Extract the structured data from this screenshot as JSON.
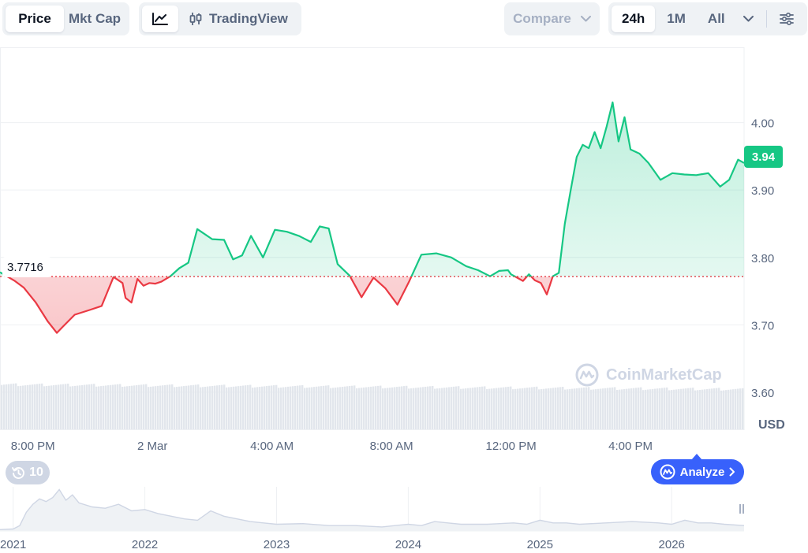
{
  "toolbar": {
    "type_options": [
      "Price",
      "Mkt Cap"
    ],
    "tradingview_label": "TradingView",
    "compare_label": "Compare",
    "range_options": [
      "24h",
      "1M",
      "All"
    ]
  },
  "current_price_badge": "3.94",
  "reference_price_badge": "3.7716",
  "history_count": "10",
  "analyze_label": "Analyze",
  "watermark_text": "CoinMarketCap",
  "colors": {
    "up": "#16c784",
    "down": "#ea3943",
    "accent": "#3861fb"
  },
  "chart_data": [
    {
      "type": "line",
      "title": "",
      "ylabel": "USD",
      "ylim": [
        3.545,
        4.1
      ],
      "y_ticks": [
        "4.00",
        "3.90",
        "3.80",
        "3.70",
        "3.60"
      ],
      "x_ticks": [
        "8:00 PM",
        "2 Mar",
        "4:00 AM",
        "8:00 AM",
        "12:00 PM",
        "4:00 PM"
      ],
      "x_tick_hours": [
        0,
        4,
        8,
        12,
        16,
        20
      ],
      "x_range_hours": [
        -1.1,
        23.8
      ],
      "reference_line": 3.7716,
      "reference_line_style": "dotted red",
      "fill": "area-above-green-below-red",
      "grid": true,
      "series": [
        {
          "values_x_hours": [
            -1.1,
            -0.6,
            -0.3,
            0.1,
            0.5,
            0.8,
            1.0,
            1.4,
            1.9,
            2.3,
            2.7,
            3.0,
            3.1,
            3.3,
            3.5,
            3.7,
            3.9,
            4.1,
            4.3,
            4.6,
            4.9,
            5.2,
            5.5,
            6.0,
            6.4,
            6.7,
            7.0,
            7.3,
            7.7,
            8.1,
            8.5,
            8.9,
            9.3,
            9.6,
            9.9,
            10.2,
            10.6,
            11.0,
            11.4,
            11.8,
            12.2,
            12.6,
            13.0,
            13.5,
            14.0,
            14.5,
            14.9,
            15.3,
            15.6,
            15.9,
            16.0,
            16.2,
            16.4,
            16.6,
            16.8,
            17.0,
            17.2,
            17.4,
            17.6,
            17.8,
            18.0,
            18.2,
            18.4,
            18.6,
            18.8,
            19.0,
            19.2,
            19.4,
            19.6,
            19.8,
            20.0,
            20.3,
            20.6,
            21.0,
            21.4,
            21.8,
            22.2,
            22.6,
            23.0,
            23.3,
            23.6,
            23.8
          ],
          "values_y": [
            3.778,
            3.765,
            3.755,
            3.733,
            3.705,
            3.688,
            3.697,
            3.715,
            3.722,
            3.728,
            3.771,
            3.762,
            3.74,
            3.733,
            3.768,
            3.758,
            3.762,
            3.761,
            3.764,
            3.772,
            3.784,
            3.792,
            3.842,
            3.827,
            3.826,
            3.797,
            3.803,
            3.832,
            3.8,
            3.841,
            3.838,
            3.832,
            3.823,
            3.846,
            3.843,
            3.79,
            3.773,
            3.741,
            3.77,
            3.754,
            3.73,
            3.765,
            3.804,
            3.806,
            3.8,
            3.787,
            3.781,
            3.772,
            3.78,
            3.781,
            3.775,
            3.77,
            3.765,
            3.775,
            3.766,
            3.762,
            3.745,
            3.772,
            3.777,
            3.85,
            3.9,
            3.949,
            3.967,
            3.962,
            3.986,
            3.962,
            3.994,
            4.03,
            3.972,
            4.008,
            3.96,
            3.954,
            3.94,
            3.915,
            3.925,
            3.923,
            3.922,
            3.925,
            3.905,
            3.915,
            3.945,
            3.94
          ]
        }
      ]
    },
    {
      "type": "area",
      "title": "",
      "x_ticks": [
        "2021",
        "2022",
        "2023",
        "2024",
        "2025",
        "2026"
      ],
      "x_range": [
        2020.9,
        2026.55
      ],
      "ylim": [
        0.9,
        4.2
      ],
      "series": [
        {
          "x": [
            2020.9,
            2021.0,
            2021.05,
            2021.1,
            2021.15,
            2021.2,
            2021.25,
            2021.3,
            2021.35,
            2021.4,
            2021.45,
            2021.5,
            2021.6,
            2021.7,
            2021.8,
            2021.9,
            2022.0,
            2022.1,
            2022.2,
            2022.3,
            2022.4,
            2022.5,
            2022.6,
            2022.7,
            2022.8,
            2022.9,
            2023.0,
            2023.2,
            2023.4,
            2023.6,
            2023.8,
            2024.0,
            2024.1,
            2024.2,
            2024.3,
            2024.4,
            2024.6,
            2024.8,
            2024.9,
            2025.0,
            2025.1,
            2025.2,
            2025.3,
            2025.5,
            2025.7,
            2025.9,
            2026.0,
            2026.1,
            2026.2,
            2026.3,
            2026.4,
            2026.55
          ],
          "y": [
            1.0,
            1.05,
            1.3,
            2.3,
            2.9,
            3.3,
            3.1,
            3.4,
            4.0,
            3.2,
            3.6,
            3.0,
            2.7,
            2.6,
            2.9,
            2.4,
            2.5,
            2.2,
            2.0,
            1.8,
            1.7,
            2.4,
            2.0,
            1.8,
            1.6,
            1.5,
            1.4,
            1.45,
            1.3,
            1.3,
            1.2,
            1.4,
            1.3,
            1.6,
            1.5,
            1.4,
            1.4,
            1.5,
            1.4,
            1.7,
            1.5,
            1.5,
            1.4,
            1.5,
            1.6,
            1.5,
            1.4,
            1.7,
            1.5,
            1.5,
            1.4,
            1.3
          ]
        }
      ]
    }
  ]
}
